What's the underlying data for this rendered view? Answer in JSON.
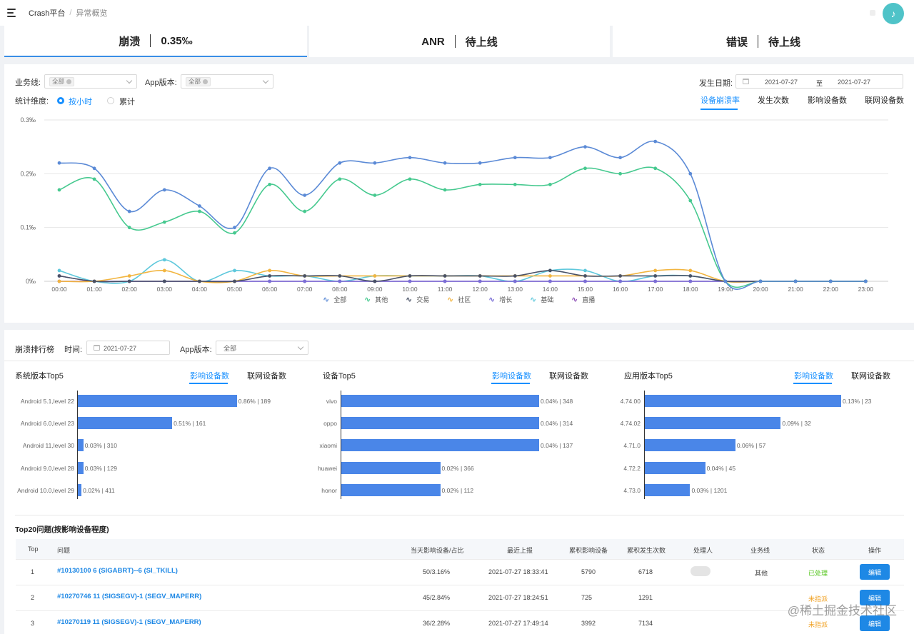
{
  "header": {
    "breadcrumb_root": "Crash平台",
    "breadcrumb_sep": "/",
    "breadcrumb_current": "异常概览"
  },
  "metrics": [
    {
      "name": "崩溃",
      "value": "0.35‰"
    },
    {
      "name": "ANR",
      "value": "待上线"
    },
    {
      "name": "错误",
      "value": "待上线"
    }
  ],
  "filters": {
    "business_label": "业务线:",
    "business_tag": "全部",
    "app_version_label": "App版本:",
    "app_version_tag": "全部",
    "date_label": "发生日期:",
    "date_start": "2021-07-27",
    "date_to": "至",
    "date_end": "2021-07-27",
    "dimension_label": "统计维度:",
    "dimension_options": [
      "按小时",
      "累计"
    ]
  },
  "chart_tabs": [
    "设备崩溃率",
    "发生次数",
    "影响设备数",
    "联网设备数"
  ],
  "chart_data": {
    "type": "line",
    "y_ticks": [
      "0.3‰",
      "0.2‰",
      "0.1‰",
      "0‰"
    ],
    "ylim": [
      0,
      0.3
    ],
    "categories": [
      "00:00",
      "01:00",
      "02:00",
      "03:00",
      "04:00",
      "05:00",
      "06:00",
      "07:00",
      "08:00",
      "09:00",
      "10:00",
      "11:00",
      "12:00",
      "13:00",
      "14:00",
      "15:00",
      "16:00",
      "17:00",
      "18:00",
      "19:00",
      "20:00",
      "21:00",
      "22:00",
      "23:00"
    ],
    "series": [
      {
        "name": "全部",
        "color": "#5b8ad6",
        "values": [
          0.22,
          0.21,
          0.13,
          0.17,
          0.14,
          0.1,
          0.21,
          0.16,
          0.22,
          0.22,
          0.23,
          0.22,
          0.22,
          0.23,
          0.23,
          0.25,
          0.23,
          0.26,
          0.2,
          0,
          0,
          0,
          0,
          0
        ]
      },
      {
        "name": "其他",
        "color": "#46c98f",
        "values": [
          0.17,
          0.19,
          0.1,
          0.11,
          0.13,
          0.09,
          0.18,
          0.13,
          0.19,
          0.16,
          0.19,
          0.17,
          0.18,
          0.18,
          0.18,
          0.21,
          0.2,
          0.21,
          0.15,
          0,
          0,
          0,
          0,
          0
        ]
      },
      {
        "name": "交易",
        "color": "#4a5266",
        "values": [
          0.01,
          0,
          0,
          0,
          0,
          0,
          0.01,
          0.01,
          0.01,
          0,
          0.01,
          0.01,
          0.01,
          0.01,
          0.02,
          0.01,
          0.01,
          0.01,
          0.01,
          0,
          0,
          0,
          0,
          0
        ]
      },
      {
        "name": "社区",
        "color": "#f2b540",
        "values": [
          0,
          0,
          0.01,
          0.02,
          0,
          0,
          0.02,
          0.01,
          0.01,
          0.01,
          0.01,
          0.01,
          0.01,
          0.01,
          0.01,
          0.01,
          0.01,
          0.02,
          0.02,
          0,
          0,
          0,
          0,
          0
        ]
      },
      {
        "name": "增长",
        "color": "#7b6fd6",
        "values": [
          0.01,
          0,
          0,
          0,
          0,
          0,
          0,
          0,
          0,
          0,
          0,
          0,
          0,
          0,
          0,
          0,
          0,
          0,
          0,
          0,
          0,
          0,
          0,
          0
        ]
      },
      {
        "name": "基础",
        "color": "#5ec8dc",
        "values": [
          0.02,
          0,
          0,
          0.04,
          0,
          0.02,
          0.01,
          0.01,
          0,
          0.01,
          0.01,
          0.01,
          0.01,
          0,
          0.02,
          0.02,
          0,
          0.01,
          0.01,
          0,
          0,
          0,
          0,
          0
        ]
      },
      {
        "name": "直播",
        "color": "#8e4fb5",
        "values": [
          0,
          0,
          0,
          0,
          0,
          0,
          0,
          0,
          0,
          0,
          0,
          0,
          0,
          0,
          0,
          0,
          0,
          0,
          0,
          0,
          0,
          0,
          0,
          0
        ]
      }
    ]
  },
  "ranking": {
    "title": "崩溃排行榜",
    "time_label": "时间:",
    "date": "2021-07-27",
    "app_version_label": "App版本:",
    "app_version_value": "全部",
    "tabs": [
      "影响设备数",
      "联网设备数"
    ],
    "charts": [
      {
        "title": "系统版本Top5",
        "items": [
          {
            "label": "Android 5.1,level 22",
            "rate": 0.86,
            "text": "0.86% | 189"
          },
          {
            "label": "Android 6.0,level 23",
            "rate": 0.51,
            "text": "0.51% | 161"
          },
          {
            "label": "Android 11,level 30",
            "rate": 0.03,
            "text": "0.03% | 310"
          },
          {
            "label": "Android 9.0,level 28",
            "rate": 0.03,
            "text": "0.03% | 129"
          },
          {
            "label": "Android 10.0,level 29",
            "rate": 0.02,
            "text": "0.02% | 411"
          }
        ]
      },
      {
        "title": "设备Top5",
        "items": [
          {
            "label": "vivo",
            "rate": 0.04,
            "text": "0.04% | 348"
          },
          {
            "label": "oppo",
            "rate": 0.04,
            "text": "0.04% | 314"
          },
          {
            "label": "xiaomi",
            "rate": 0.04,
            "text": "0.04% | 137"
          },
          {
            "label": "huawei",
            "rate": 0.02,
            "text": "0.02% | 366"
          },
          {
            "label": "honor",
            "rate": 0.02,
            "text": "0.02% | 112"
          }
        ]
      },
      {
        "title": "应用版本Top5",
        "items": [
          {
            "label": "4.74.00",
            "rate": 0.13,
            "text": "0.13% | 23"
          },
          {
            "label": "4.74.02",
            "rate": 0.09,
            "text": "0.09% | 32"
          },
          {
            "label": "4.71.0",
            "rate": 0.06,
            "text": "0.06% | 57"
          },
          {
            "label": "4.72.2",
            "rate": 0.04,
            "text": "0.04% | 45"
          },
          {
            "label": "4.73.0",
            "rate": 0.03,
            "text": "0.03% | 1201"
          }
        ]
      }
    ]
  },
  "table": {
    "title": "Top20问题(按影响设备程度)",
    "headers": [
      "Top",
      "问题",
      "当天影响设备/占比",
      "最近上报",
      "累积影响设备",
      "累积发生次数",
      "处理人",
      "业务线",
      "状态",
      "操作"
    ],
    "rows": [
      {
        "top": "1",
        "issue": "#10130100   6 (SIGABRT)--6 (SI_TKILL)",
        "today": "50/3.16%",
        "last": "2021-07-27 18:33:41",
        "devices": "5790",
        "count": "6718",
        "line": "其他",
        "status": "已处理",
        "action": "编辑"
      },
      {
        "top": "2",
        "issue": "#10270746   11 (SIGSEGV)-1 (SEGV_MAPERR)",
        "today": "45/2.84%",
        "last": "2021-07-27 18:24:51",
        "devices": "725",
        "count": "1291",
        "line": "",
        "status": "未指派",
        "action": "编辑"
      },
      {
        "top": "3",
        "issue": "#10270119   11 (SIGSEGV)-1 (SEGV_MAPERR)",
        "today": "36/2.28%",
        "last": "2021-07-27 17:49:14",
        "devices": "3992",
        "count": "7134",
        "line": "",
        "status": "未指派",
        "action": "编辑"
      }
    ]
  },
  "watermark": "@稀土掘金技术社区"
}
